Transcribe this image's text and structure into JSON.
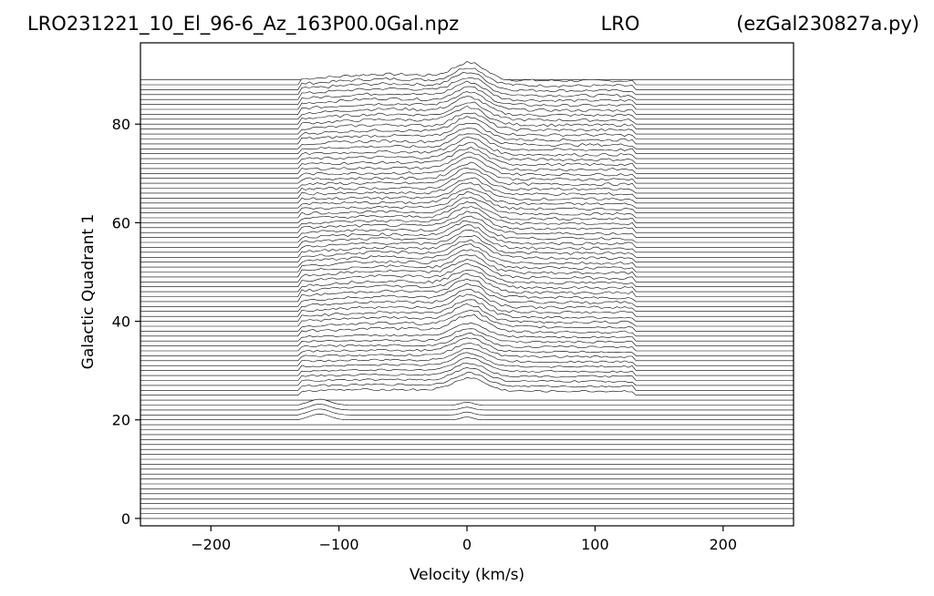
{
  "chart_data": {
    "type": "line",
    "title_left": "LRO231221_10_El_96-6_Az_163P00.0Gal.npz",
    "title_center": "LRO",
    "title_right": "(ezGal230827a.py)",
    "xlabel": "Velocity (km/s)",
    "ylabel": "Galactic Quadrant 1",
    "xlim": [
      -255,
      255
    ],
    "ylim": [
      -1.5,
      96.5
    ],
    "xticks": [
      -200,
      -100,
      0,
      100,
      200
    ],
    "xtick_labels": [
      "−200",
      "−100",
      "0",
      "100",
      "200"
    ],
    "yticks": [
      0,
      20,
      40,
      60,
      80
    ],
    "yticks_labels": [
      "0",
      "20",
      "40",
      "60",
      "80"
    ],
    "ridgelines": {
      "count": 90,
      "first": 0,
      "step": 1,
      "baseline_offset": 0
    },
    "spectral_window_km_s": [
      -130,
      130
    ],
    "peak_velocity_km_s": 0,
    "grid": false,
    "legend": "none",
    "line_color": "#000000"
  }
}
